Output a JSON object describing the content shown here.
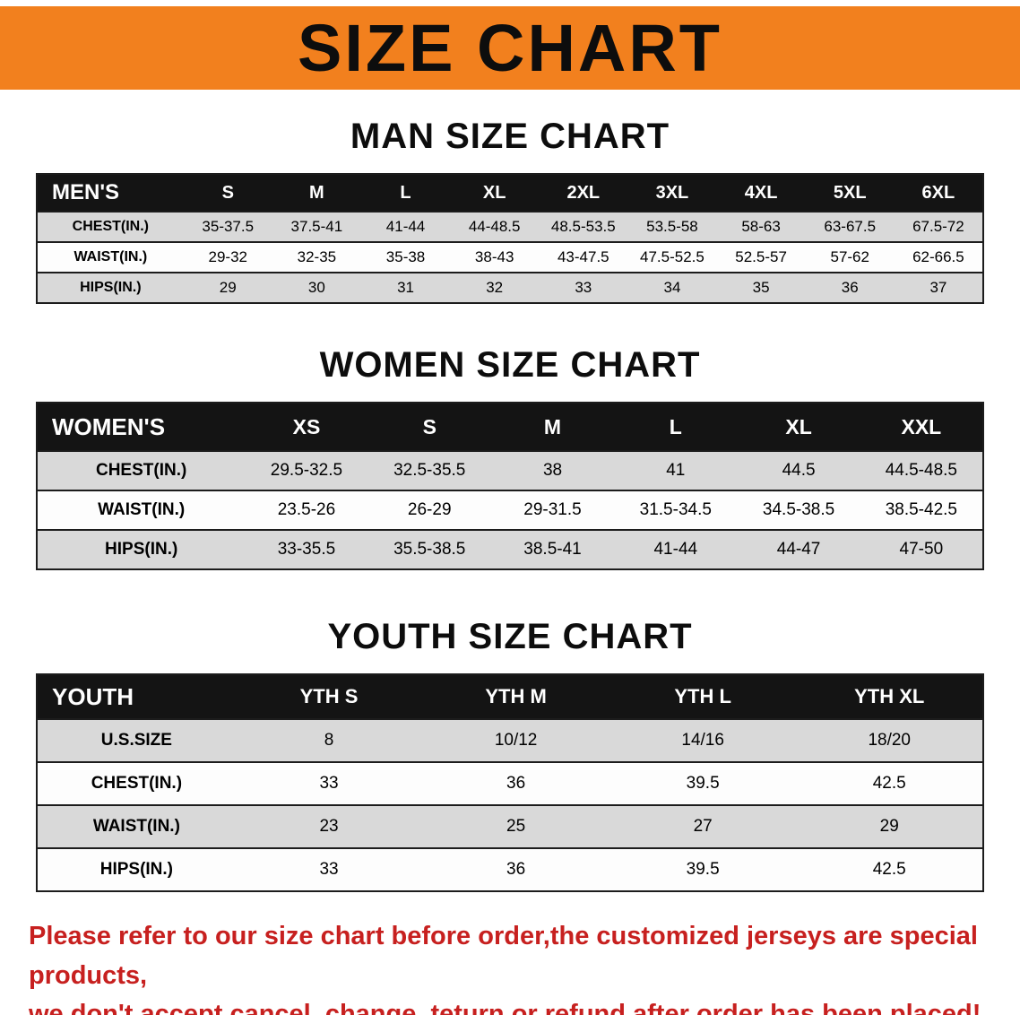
{
  "banner": {
    "title": "SIZE CHART"
  },
  "tables": [
    {
      "id": "men",
      "heading": "MAN SIZE CHART",
      "corner": "MEN'S",
      "columns": [
        "S",
        "M",
        "L",
        "XL",
        "2XL",
        "3XL",
        "4XL",
        "5XL",
        "6XL"
      ],
      "rows": [
        {
          "label": "CHEST(IN.)",
          "values": [
            "35-37.5",
            "37.5-41",
            "41-44",
            "44-48.5",
            "48.5-53.5",
            "53.5-58",
            "58-63",
            "63-67.5",
            "67.5-72"
          ]
        },
        {
          "label": "WAIST(IN.)",
          "values": [
            "29-32",
            "32-35",
            "35-38",
            "38-43",
            "43-47.5",
            "47.5-52.5",
            "52.5-57",
            "57-62",
            "62-66.5"
          ]
        },
        {
          "label": "HIPS(IN.)",
          "values": [
            "29",
            "30",
            "31",
            "32",
            "33",
            "34",
            "35",
            "36",
            "37"
          ]
        }
      ]
    },
    {
      "id": "women",
      "heading": "WOMEN SIZE CHART",
      "corner": "WOMEN'S",
      "columns": [
        "XS",
        "S",
        "M",
        "L",
        "XL",
        "XXL"
      ],
      "rows": [
        {
          "label": "CHEST(IN.)",
          "values": [
            "29.5-32.5",
            "32.5-35.5",
            "38",
            "41",
            "44.5",
            "44.5-48.5"
          ]
        },
        {
          "label": "WAIST(IN.)",
          "values": [
            "23.5-26",
            "26-29",
            "29-31.5",
            "31.5-34.5",
            "34.5-38.5",
            "38.5-42.5"
          ]
        },
        {
          "label": "HIPS(IN.)",
          "values": [
            "33-35.5",
            "35.5-38.5",
            "38.5-41",
            "41-44",
            "44-47",
            "47-50"
          ]
        }
      ]
    },
    {
      "id": "youth",
      "heading": "YOUTH SIZE CHART",
      "corner": "YOUTH",
      "columns": [
        "YTH S",
        "YTH M",
        "YTH L",
        "YTH XL"
      ],
      "rows": [
        {
          "label": "U.S.SIZE",
          "values": [
            "8",
            "10/12",
            "14/16",
            "18/20"
          ]
        },
        {
          "label": "CHEST(IN.)",
          "values": [
            "33",
            "36",
            "39.5",
            "42.5"
          ]
        },
        {
          "label": "WAIST(IN.)",
          "values": [
            "23",
            "25",
            "27",
            "29"
          ]
        },
        {
          "label": "HIPS(IN.)",
          "values": [
            "33",
            "36",
            "39.5",
            "42.5"
          ]
        }
      ]
    }
  ],
  "disclaimer": {
    "line1": "Please refer to our size chart before order,the customized jerseys are special products,",
    "line2": "we don't accept cancel, change, teturn or refund after order has been placed!"
  },
  "colors": {
    "banner_bg": "#f2801e",
    "heading_text": "#0d0d0d",
    "table_header_bg": "#141414",
    "table_header_text": "#ffffff",
    "row_shaded_bg": "#d9d9d9",
    "row_plain_bg": "#fdfdfd",
    "table_border": "#1c1c1c",
    "disclaimer_text": "#c7201f"
  }
}
